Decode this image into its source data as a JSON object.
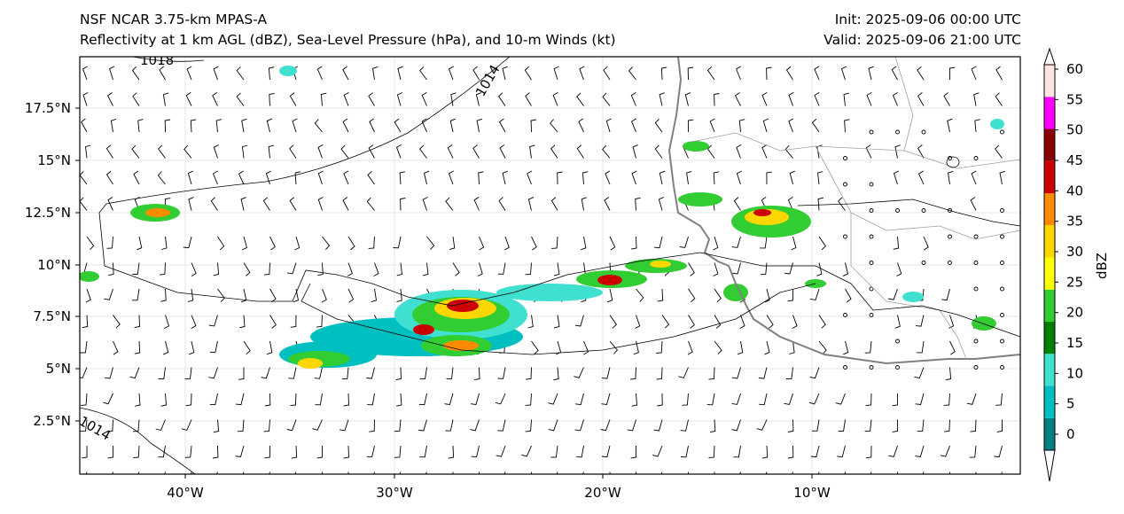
{
  "header": {
    "title_left_1": "NSF NCAR 3.75-km MPAS-A",
    "title_left_2": "Reflectivity at 1 km AGL (dBZ), Sea-Level Pressure (hPa), and 10-m Winds (kt)",
    "title_right_1": "Init: 2025-09-06 00:00 UTC",
    "title_right_2": "Valid: 2025-09-06 21:00 UTC"
  },
  "map": {
    "lat_labels": [
      "17.5°N",
      "15°N",
      "12.5°N",
      "10°N",
      "7.5°N",
      "5°N",
      "2.5°N"
    ],
    "lon_labels": [
      "40°W",
      "30°W",
      "20°W",
      "10°W"
    ],
    "isobar_labels": [
      "1018",
      "1014",
      "1014"
    ],
    "coastline_color": "#808080",
    "isobar_color": "#000000"
  },
  "colorbar": {
    "label": "dBZ",
    "ticks": [
      "0",
      "5",
      "10",
      "15",
      "20",
      "25",
      "30",
      "35",
      "40",
      "45",
      "50",
      "55",
      "60"
    ],
    "colors": [
      "#008080",
      "#00bfc0",
      "#40e0d0",
      "#008000",
      "#32cd32",
      "#ffff00",
      "#ffd700",
      "#ff8c00",
      "#cc0000",
      "#8b0000",
      "#ff00ff",
      "#ffe4e1"
    ]
  }
}
